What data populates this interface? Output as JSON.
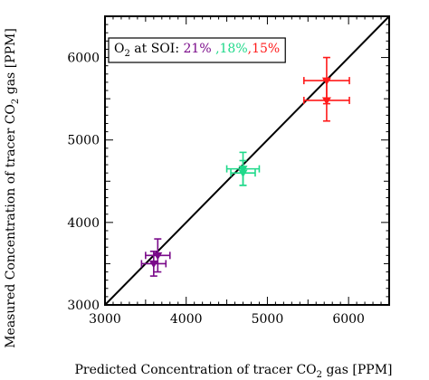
{
  "chart_data": {
    "type": "scatter",
    "title": "",
    "xlabel_parts": [
      "Predicted Concentration of tracer CO",
      "2",
      " gas [PPM]"
    ],
    "ylabel_parts": [
      "Measured Concentration of tracer CO",
      "2",
      " gas [PPM]"
    ],
    "xlim": [
      3000,
      6500
    ],
    "ylim": [
      3000,
      6500
    ],
    "x_ticks": [
      3000,
      4000,
      5000,
      6000
    ],
    "y_ticks": [
      3000,
      4000,
      5000,
      6000
    ],
    "grid": false,
    "reference_line": {
      "from": [
        3000,
        3000
      ],
      "to": [
        6500,
        6500
      ],
      "label": "y = x"
    },
    "legend": {
      "position": "top-left",
      "prefix_parts": [
        "O",
        "2",
        " at SOI: "
      ],
      "entries": [
        {
          "label": "21%",
          "color": "#7a0a8a"
        },
        {
          "label": " ,18%",
          "color": "#1fd98a"
        },
        {
          "label": ",15%",
          "color": "#ff1a1a"
        }
      ]
    },
    "series": [
      {
        "name": "21%",
        "color": "#7a0a8a",
        "points": [
          {
            "x": 3650,
            "y": 3600,
            "xerr": 150,
            "yerr": 200,
            "marker": "triangle-down"
          },
          {
            "x": 3600,
            "y": 3500,
            "xerr": 150,
            "yerr": 150,
            "marker": "triangle-down"
          }
        ]
      },
      {
        "name": "18%",
        "color": "#1fd98a",
        "points": [
          {
            "x": 4700,
            "y": 4650,
            "xerr": 200,
            "yerr": 200,
            "marker": "triangle-down"
          },
          {
            "x": 4700,
            "y": 4600,
            "xerr": 150,
            "yerr": 150,
            "marker": "triangle-down"
          }
        ]
      },
      {
        "name": "15%",
        "color": "#ff1a1a",
        "points": [
          {
            "x": 5730,
            "y": 5720,
            "xerr": 280,
            "yerr": 280,
            "marker": "triangle-down"
          },
          {
            "x": 5730,
            "y": 5480,
            "xerr": 280,
            "yerr": 250,
            "marker": "triangle-down"
          }
        ]
      }
    ]
  }
}
